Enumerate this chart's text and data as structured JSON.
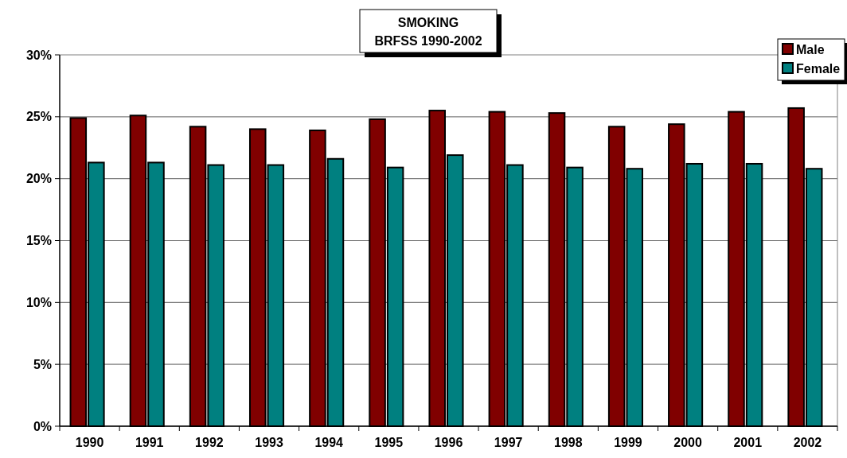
{
  "chart_data": {
    "type": "bar",
    "title": "SMOKING",
    "subtitle": "BRFSS 1990-2002",
    "categories": [
      "1990",
      "1991",
      "1992",
      "1993",
      "1994",
      "1995",
      "1996",
      "1997",
      "1998",
      "1999",
      "2000",
      "2001",
      "2002"
    ],
    "series": [
      {
        "name": "Male",
        "color": "#800000",
        "values": [
          24.9,
          25.1,
          24.2,
          24.0,
          23.9,
          24.8,
          25.5,
          25.4,
          25.3,
          24.2,
          24.4,
          25.4,
          25.7
        ]
      },
      {
        "name": "Female",
        "color": "#008080",
        "values": [
          21.3,
          21.3,
          21.1,
          21.1,
          21.6,
          20.9,
          21.9,
          21.1,
          20.9,
          20.8,
          21.2,
          21.2,
          20.8
        ]
      }
    ],
    "ylim": [
      0,
      30
    ],
    "yticks": [
      {
        "value": 0,
        "label": "0%"
      },
      {
        "value": 5,
        "label": "5%"
      },
      {
        "value": 10,
        "label": "10%"
      },
      {
        "value": 15,
        "label": "15%"
      },
      {
        "value": 20,
        "label": "20%"
      },
      {
        "value": 25,
        "label": "25%"
      },
      {
        "value": 30,
        "label": "30%"
      }
    ],
    "grid": "y",
    "legend": "top right"
  }
}
